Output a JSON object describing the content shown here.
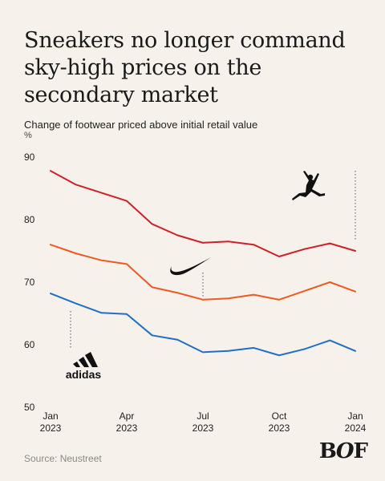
{
  "chart_data": {
    "type": "line",
    "title": "Sneakers no longer command sky-high prices on the secondary market",
    "subtitle": "Change of footwear priced above initial retail value",
    "ylabel": "%",
    "ylim": [
      50,
      90
    ],
    "yticks": [
      50,
      60,
      70,
      80,
      90
    ],
    "x": [
      0,
      1,
      2,
      3,
      4,
      5,
      6,
      7,
      8,
      9,
      10,
      11,
      12
    ],
    "xticks": [
      {
        "at": 0,
        "line1": "Jan",
        "line2": "2023"
      },
      {
        "at": 3,
        "line1": "Apr",
        "line2": "2023"
      },
      {
        "at": 6,
        "line1": "Jul",
        "line2": "2023"
      },
      {
        "at": 9,
        "line1": "Oct",
        "line2": "2023"
      },
      {
        "at": 12,
        "line1": "Jan",
        "line2": "2024"
      }
    ],
    "grid": false,
    "series": [
      {
        "brand": "jordan",
        "color": "#d0202a",
        "values": [
          87.8,
          85.6,
          84.3,
          83.0,
          79.3,
          77.5,
          76.3,
          76.5,
          76.0,
          74.1,
          75.3,
          76.2,
          75.0
        ]
      },
      {
        "brand": "nike",
        "color": "#ee5a24",
        "values": [
          76.0,
          74.6,
          73.5,
          72.9,
          69.2,
          68.3,
          67.2,
          67.4,
          68.0,
          67.2,
          68.6,
          70.0,
          68.5
        ]
      },
      {
        "brand": "adidas",
        "color": "#1f6fc5",
        "values": [
          68.2,
          66.6,
          65.1,
          64.9,
          61.5,
          60.8,
          58.8,
          59.0,
          59.5,
          58.3,
          59.3,
          60.7,
          59.0
        ]
      }
    ],
    "annotations": [
      {
        "brand": "jordan",
        "icon": "jumpman-logo-icon",
        "at_x": 12
      },
      {
        "brand": "nike",
        "icon": "nike-swoosh-icon",
        "at_x": 6
      },
      {
        "brand": "adidas",
        "icon": "adidas-logo-icon",
        "at_x": 0,
        "logo_text": "adidas"
      }
    ]
  },
  "footer": {
    "source": "Source: Neustreet",
    "logo": "BOF"
  }
}
